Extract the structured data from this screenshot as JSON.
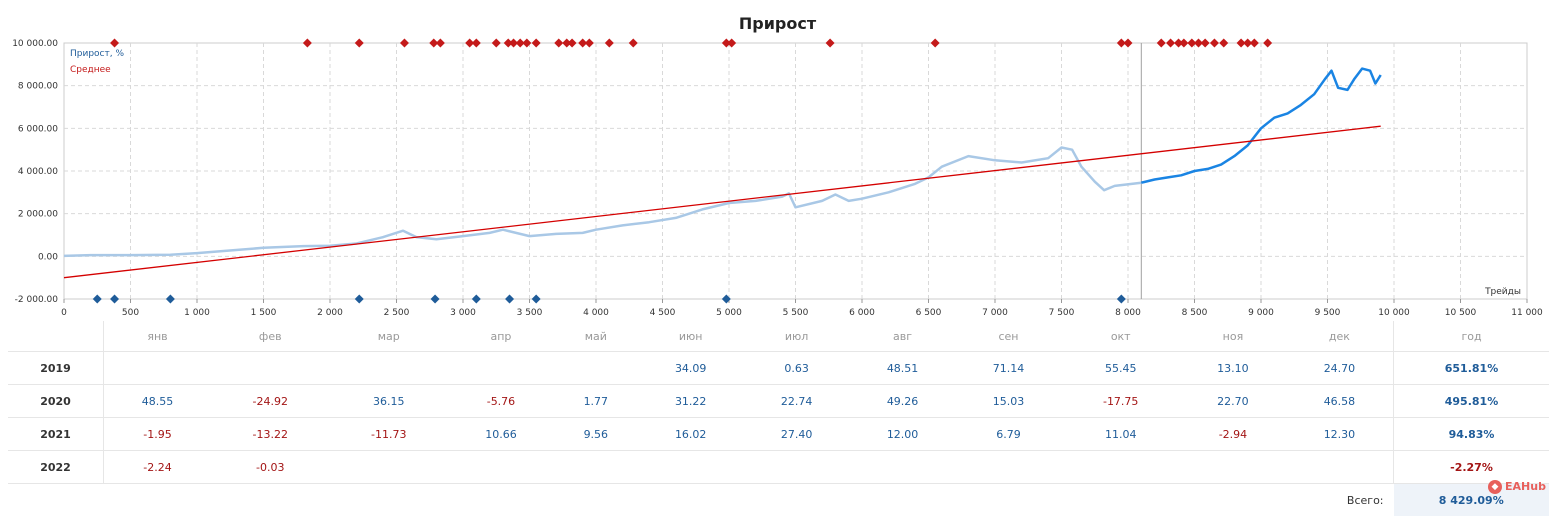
{
  "chart_data": {
    "type": "line",
    "title": "Прирост",
    "xlabel": "Трейды",
    "ylabel": "",
    "xlim": [
      0,
      11000
    ],
    "ylim": [
      -2000,
      10000
    ],
    "x_ticks": [
      0,
      500,
      1000,
      1500,
      2000,
      2500,
      3000,
      3500,
      4000,
      4500,
      5000,
      5500,
      6000,
      6500,
      7000,
      7500,
      8000,
      8500,
      9000,
      9500,
      10000,
      10500,
      11000
    ],
    "x_tick_labels": [
      "0",
      "500",
      "1 000",
      "1 500",
      "2 000",
      "2 500",
      "3 000",
      "3 500",
      "4 000",
      "4 500",
      "5 000",
      "5 500",
      "6 000",
      "6 500",
      "7 000",
      "7 500",
      "8 000",
      "8 500",
      "9 000",
      "9 500",
      "10 000",
      "10 500",
      "11 000"
    ],
    "y_ticks": [
      -2000,
      0,
      2000,
      4000,
      6000,
      8000,
      10000
    ],
    "y_tick_labels": [
      "-2 000.00",
      "0.00",
      "2 000.00",
      "4 000.00",
      "6 000.00",
      "8 000.00",
      "10 000.00"
    ],
    "grid": true,
    "legend_position": "top-left",
    "legend": [
      "Прирост, %",
      "Среднее"
    ],
    "divider_x": 8100,
    "series": [
      {
        "name": "Прирост, %",
        "color_history": "#a9c8e6",
        "color_recent": "#1a84e3",
        "points": [
          [
            0,
            20
          ],
          [
            200,
            60
          ],
          [
            500,
            60
          ],
          [
            800,
            70
          ],
          [
            1000,
            150
          ],
          [
            1200,
            250
          ],
          [
            1500,
            400
          ],
          [
            1800,
            480
          ],
          [
            2000,
            500
          ],
          [
            2200,
            600
          ],
          [
            2400,
            900
          ],
          [
            2550,
            1200
          ],
          [
            2650,
            900
          ],
          [
            2800,
            800
          ],
          [
            3000,
            950
          ],
          [
            3200,
            1100
          ],
          [
            3300,
            1250
          ],
          [
            3500,
            950
          ],
          [
            3700,
            1050
          ],
          [
            3900,
            1100
          ],
          [
            4000,
            1250
          ],
          [
            4200,
            1450
          ],
          [
            4400,
            1600
          ],
          [
            4600,
            1800
          ],
          [
            4800,
            2200
          ],
          [
            5000,
            2500
          ],
          [
            5200,
            2600
          ],
          [
            5400,
            2800
          ],
          [
            5450,
            2950
          ],
          [
            5500,
            2300
          ],
          [
            5700,
            2600
          ],
          [
            5800,
            2900
          ],
          [
            5900,
            2600
          ],
          [
            6000,
            2700
          ],
          [
            6200,
            3000
          ],
          [
            6400,
            3400
          ],
          [
            6500,
            3700
          ],
          [
            6600,
            4200
          ],
          [
            6800,
            4700
          ],
          [
            7000,
            4500
          ],
          [
            7200,
            4400
          ],
          [
            7400,
            4600
          ],
          [
            7500,
            5100
          ],
          [
            7580,
            5000
          ],
          [
            7650,
            4200
          ],
          [
            7750,
            3500
          ],
          [
            7820,
            3100
          ],
          [
            7900,
            3300
          ],
          [
            8100,
            3450
          ],
          [
            8200,
            3600
          ],
          [
            8300,
            3700
          ],
          [
            8400,
            3800
          ],
          [
            8500,
            4000
          ],
          [
            8600,
            4100
          ],
          [
            8700,
            4300
          ],
          [
            8800,
            4700
          ],
          [
            8900,
            5200
          ],
          [
            9000,
            6000
          ],
          [
            9100,
            6500
          ],
          [
            9200,
            6700
          ],
          [
            9300,
            7100
          ],
          [
            9400,
            7600
          ],
          [
            9480,
            8300
          ],
          [
            9530,
            8700
          ],
          [
            9580,
            7900
          ],
          [
            9650,
            7800
          ],
          [
            9700,
            8300
          ],
          [
            9760,
            8800
          ],
          [
            9820,
            8700
          ],
          [
            9860,
            8100
          ],
          [
            9900,
            8500
          ]
        ]
      },
      {
        "name": "Среднее",
        "color": "#d40000",
        "points": [
          [
            0,
            -1000
          ],
          [
            9900,
            6100
          ]
        ]
      }
    ],
    "top_markers_color": "#c41a1a",
    "top_markers_x": [
      380,
      1830,
      2220,
      2560,
      2780,
      2830,
      3050,
      3100,
      3250,
      3340,
      3380,
      3430,
      3480,
      3550,
      3720,
      3780,
      3820,
      3900,
      3950,
      4100,
      4280,
      4980,
      5020,
      5760,
      6550,
      7950,
      8000,
      8250,
      8320,
      8380,
      8420,
      8480,
      8530,
      8580,
      8650,
      8720,
      8850,
      8900,
      8950,
      9050
    ],
    "bottom_markers_color": "#1f5c99",
    "bottom_markers_x": [
      250,
      380,
      800,
      2220,
      2790,
      3100,
      3350,
      3550,
      4980,
      7950
    ]
  },
  "table": {
    "headers": [
      "янв",
      "фев",
      "мар",
      "апр",
      "май",
      "июн",
      "июл",
      "авг",
      "сен",
      "окт",
      "ноя",
      "дек",
      "год"
    ],
    "rows": [
      {
        "year": "2019",
        "values": [
          "",
          "",
          "",
          "",
          "",
          "34.09",
          "0.63",
          "48.51",
          "71.14",
          "55.45",
          "13.10",
          "24.70"
        ],
        "total": "651.81%"
      },
      {
        "year": "2020",
        "values": [
          "48.55",
          "-24.92",
          "36.15",
          "-5.76",
          "1.77",
          "31.22",
          "22.74",
          "49.26",
          "15.03",
          "-17.75",
          "22.70",
          "46.58"
        ],
        "total": "495.81%"
      },
      {
        "year": "2021",
        "values": [
          "-1.95",
          "-13.22",
          "-11.73",
          "10.66",
          "9.56",
          "16.02",
          "27.40",
          "12.00",
          "6.79",
          "11.04",
          "-2.94",
          "12.30"
        ],
        "total": "94.83%"
      },
      {
        "year": "2022",
        "values": [
          "-2.24",
          "-0.03",
          "",
          "",
          "",
          "",
          "",
          "",
          "",
          "",
          "",
          ""
        ],
        "total": "-2.27%"
      }
    ],
    "summary_label": "Всего:",
    "summary_value": "8 429.09%"
  },
  "watermark": "EAHub"
}
